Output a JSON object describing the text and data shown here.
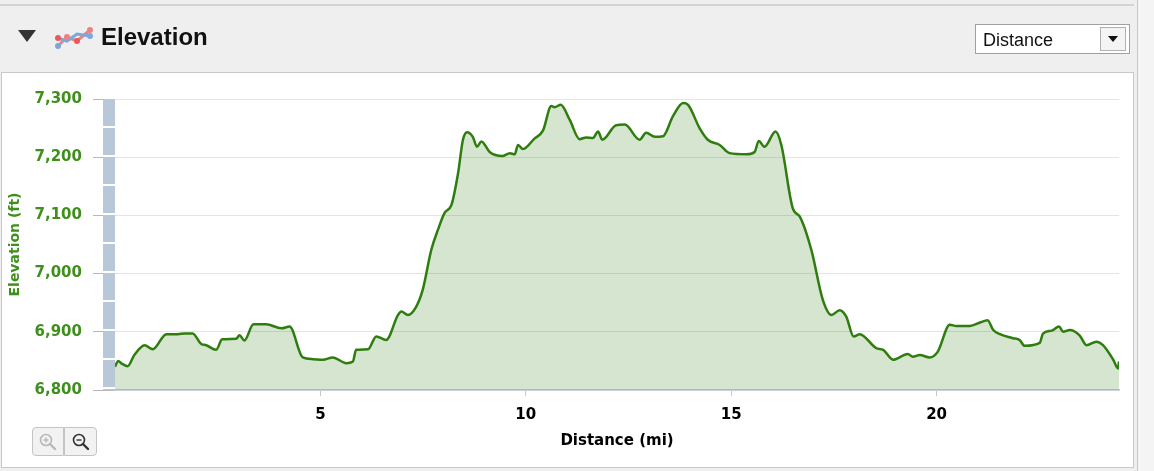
{
  "chart_data": {
    "type": "area",
    "title": "Elevation",
    "xlabel": "Distance (mi)",
    "ylabel": "Elevation (ft)",
    "annotations": [
      "Distance"
    ],
    "x": [
      0,
      0.08,
      0.15,
      0.31,
      0.47,
      0.72,
      0.92,
      1.25,
      1.53,
      1.69,
      1.89,
      2.1,
      2.22,
      2.46,
      2.61,
      2.95,
      3.03,
      3.15,
      3.37,
      3.68,
      4.05,
      4.25,
      4.57,
      4.82,
      5.06,
      5.3,
      5.63,
      5.79,
      5.87,
      6.16,
      6.36,
      6.6,
      6.89,
      6.97,
      7.13,
      7.33,
      7.49,
      7.7,
      7.86,
      8.02,
      8.19,
      8.35,
      8.47,
      8.57,
      8.71,
      8.81,
      8.92,
      9.12,
      9.43,
      9.61,
      9.73,
      9.81,
      9.93,
      10.21,
      10.42,
      10.62,
      10.7,
      10.85,
      11.07,
      11.31,
      11.47,
      11.63,
      11.76,
      11.86,
      12.2,
      12.41,
      12.77,
      12.93,
      13.14,
      13.34,
      13.58,
      13.83,
      13.95,
      14.23,
      14.43,
      14.72,
      14.96,
      15.37,
      15.57,
      15.67,
      15.81,
      16.08,
      16.22,
      16.5,
      16.67,
      16.95,
      17.23,
      17.44,
      17.64,
      17.8,
      17.98,
      18.13,
      18.53,
      18.7,
      18.94,
      19.3,
      19.42,
      19.59,
      19.83,
      20.03,
      20.32,
      20.48,
      20.81,
      21.06,
      21.24,
      21.38,
      21.54,
      21.86,
      22.02,
      22.14,
      22.51,
      22.59,
      22.8,
      22.98,
      23.08,
      23.24,
      23.48,
      23.65,
      23.89,
      24.05,
      24.3,
      24.42,
      24.44
    ],
    "values": [
      6840,
      6850,
      6846,
      6841,
      6860,
      6877,
      6870,
      6896,
      6896,
      6897,
      6897,
      6879,
      6877,
      6869,
      6887,
      6888,
      6894,
      6885,
      6913,
      6913,
      6906,
      6909,
      6856,
      6853,
      6852,
      6856,
      6846,
      6849,
      6869,
      6870,
      6892,
      6886,
      6929,
      6935,
      6929,
      6943,
      6972,
      7041,
      7075,
      7104,
      7118,
      7172,
      7230,
      7243,
      7235,
      7218,
      7227,
      7209,
      7202,
      7207,
      7205,
      7221,
      7214,
      7232,
      7246,
      7288,
      7286,
      7290,
      7264,
      7231,
      7234,
      7233,
      7244,
      7230,
      7255,
      7256,
      7230,
      7242,
      7235,
      7236,
      7270,
      7293,
      7290,
      7250,
      7230,
      7221,
      7207,
      7205,
      7209,
      7228,
      7218,
      7244,
      7221,
      7112,
      7098,
      7041,
      6955,
      6929,
      6937,
      6926,
      6892,
      6896,
      6872,
      6869,
      6852,
      6862,
      6857,
      6860,
      6856,
      6866,
      6912,
      6910,
      6910,
      6916,
      6920,
      6903,
      6896,
      6889,
      6886,
      6876,
      6881,
      6897,
      6902,
      6909,
      6900,
      6903,
      6894,
      6877,
      6883,
      6877,
      6852,
      6837,
      6849
    ],
    "color": "#2e7d0e",
    "xlim": [
      0,
      24.44
    ],
    "xticks": [
      5,
      10,
      15,
      20
    ],
    "ylim": [
      6800,
      7300
    ],
    "yticks": [
      {
        "value": 6800,
        "label": "6,800"
      },
      {
        "value": 6900,
        "label": "6,900"
      },
      {
        "value": 7000,
        "label": "7,000"
      },
      {
        "value": 7100,
        "label": "7,100"
      },
      {
        "value": 7200,
        "label": "7,200"
      },
      {
        "value": 7300,
        "label": "7,300"
      }
    ],
    "grid": "y"
  }
}
